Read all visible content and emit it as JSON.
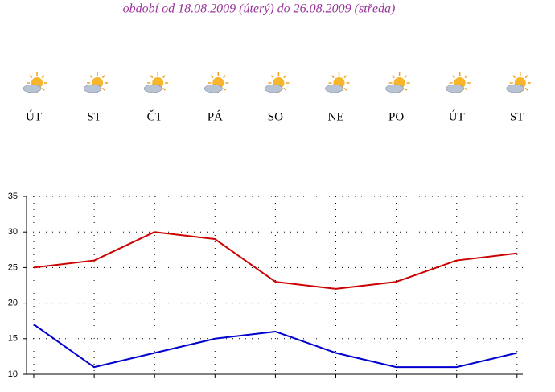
{
  "chart_data": {
    "type": "line",
    "title": "období od 18.08.2009 (úterý) do 26.08.2009 (středa)",
    "categories": [
      "ÚT",
      "ST",
      "ČT",
      "PÁ",
      "SO",
      "NE",
      "PO",
      "ÚT",
      "ST"
    ],
    "series": [
      {
        "color": "#cc0000",
        "values": [
          25,
          26,
          30,
          29,
          23,
          22,
          23,
          26,
          27
        ]
      },
      {
        "color": "#0000cc",
        "values": [
          17,
          11,
          13,
          15,
          16,
          13,
          11,
          11,
          13
        ]
      }
    ],
    "ylim": [
      10,
      35
    ],
    "yticks": [
      10,
      15,
      20,
      25,
      30,
      35
    ],
    "grid": true
  }
}
